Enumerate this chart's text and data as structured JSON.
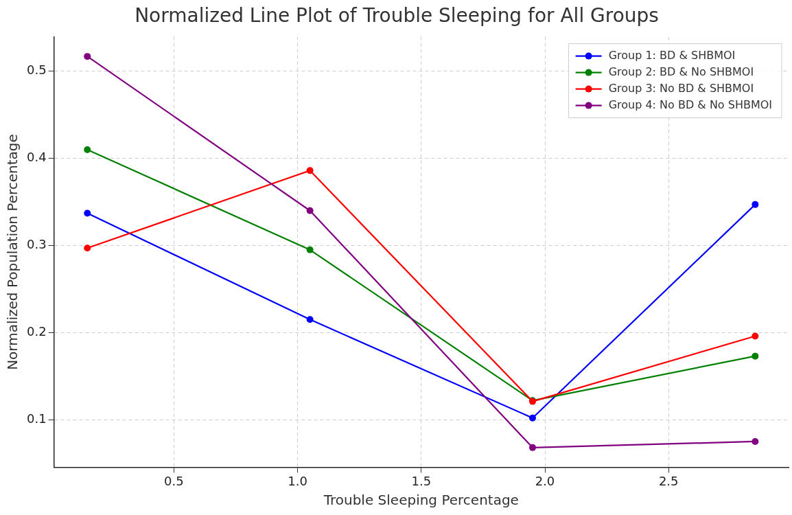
{
  "chart_data": {
    "type": "line",
    "title": "Normalized Line Plot of Trouble Sleeping for All Groups",
    "xlabel": "Trouble Sleeping Percentage",
    "ylabel": "Normalized Population Percentage",
    "x": [
      0.15,
      1.05,
      1.95,
      2.85
    ],
    "series": [
      {
        "name": "Group 1: BD & SHBMOI",
        "color": "#0000ff",
        "values": [
          0.337,
          0.215,
          0.102,
          0.347
        ]
      },
      {
        "name": "Group 2: BD & No SHBMOI",
        "color": "#008000",
        "values": [
          0.41,
          0.295,
          0.122,
          0.173
        ]
      },
      {
        "name": "Group 3: No BD & SHBMOI",
        "color": "#ff0000",
        "values": [
          0.297,
          0.386,
          0.121,
          0.196
        ]
      },
      {
        "name": "Group 4: No BD & No SHBMOI",
        "color": "#800080",
        "values": [
          0.517,
          0.34,
          0.068,
          0.075
        ]
      }
    ],
    "xlim": [
      0.015,
      2.985
    ],
    "xticks": [
      0.5,
      {
        "value": 1,
        "label": "1.0"
      },
      1.5,
      {
        "value": 2,
        "label": "2.0"
      },
      2.5
    ],
    "ylim": [
      0.0455,
      0.5395
    ],
    "yticks": [
      0.1,
      0.2,
      0.3,
      0.4,
      0.5
    ],
    "grid": true,
    "legend": "top right",
    "marker": "circle",
    "line_style": "solid"
  }
}
